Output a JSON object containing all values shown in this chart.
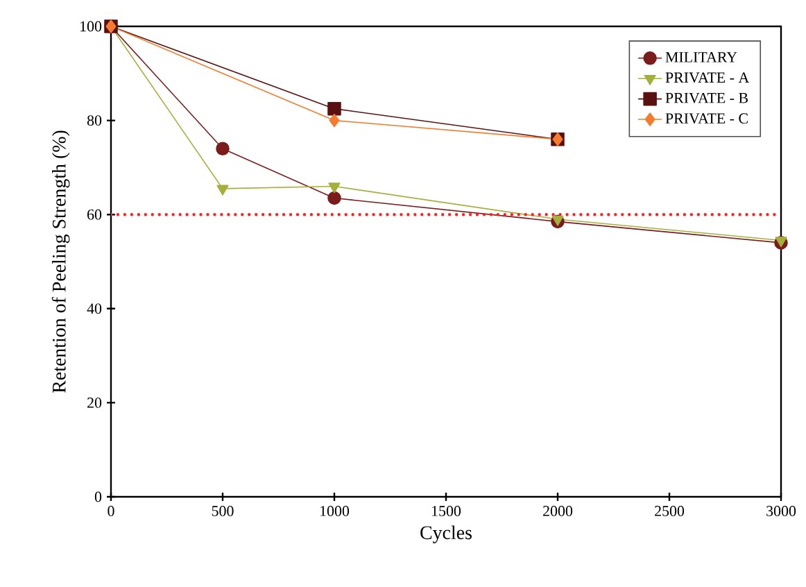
{
  "chart_data": {
    "type": "line",
    "xlabel": "Cycles",
    "ylabel": "Retention of Peeling Strength (%)",
    "xlim": [
      0,
      3000
    ],
    "xticks": [
      0,
      500,
      1000,
      1500,
      2000,
      2500,
      3000
    ],
    "ylim": [
      0,
      100
    ],
    "yticks": [
      0,
      20,
      40,
      60,
      80,
      100
    ],
    "legend": "top right",
    "grid": false,
    "line_style": "solid",
    "series": [
      {
        "name": "MILITARY",
        "color": "#7b1c1c",
        "marker": "circle",
        "x": [
          0,
          500,
          1000,
          2000,
          3000
        ],
        "values": [
          100,
          74,
          63.5,
          58.5,
          54
        ]
      },
      {
        "name": "PRIVATE - A",
        "color": "#a4b03a",
        "marker": "triangle",
        "x": [
          0,
          500,
          1000,
          2000,
          3000
        ],
        "values": [
          100,
          65.5,
          66,
          59,
          54.5
        ]
      },
      {
        "name": "PRIVATE - B",
        "color": "#5a1010",
        "marker": "square",
        "x": [
          0,
          1000,
          2000
        ],
        "values": [
          100,
          82.5,
          76
        ]
      },
      {
        "name": "PRIVATE - C",
        "color": "#f47c2c",
        "marker": "diamond",
        "x": [
          0,
          1000,
          2000
        ],
        "values": [
          100,
          80,
          76
        ]
      }
    ],
    "ref_lines": [
      {
        "axis": "y",
        "value": 60,
        "color": "#ff2020",
        "line_style": "dotted"
      }
    ]
  }
}
